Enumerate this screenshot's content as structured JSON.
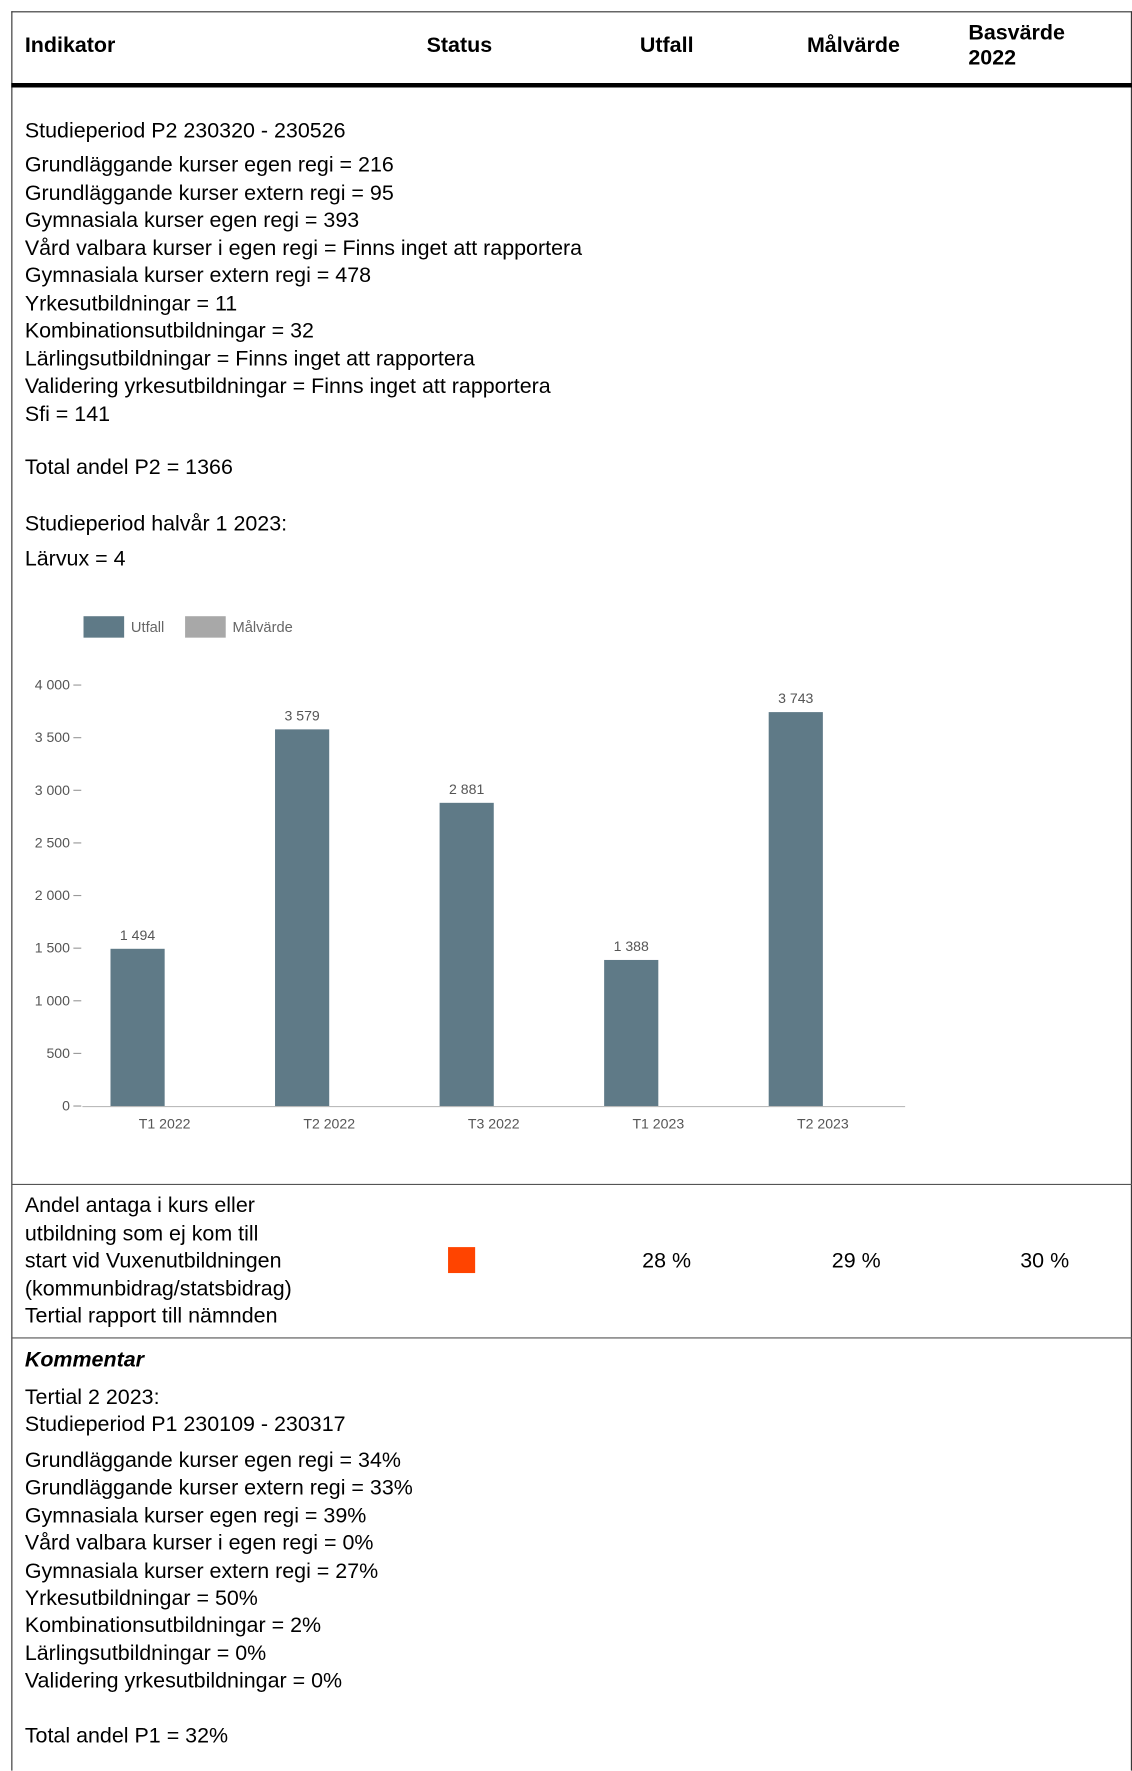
{
  "header": {
    "columns": [
      "Indikator",
      "Status",
      "Utfall",
      "Målvärde",
      "Basvärde 2022"
    ]
  },
  "section1": {
    "lines": [
      "Studieperiod P2 230320 - 230526",
      "Grundläggande kurser egen regi = 216",
      "Grundläggande kurser extern regi = 95",
      "Gymnasiala kurser egen regi = 393",
      "Vård valbara kurser i egen regi = Finns inget att rapportera",
      "Gymnasiala kurser extern regi = 478",
      "Yrkesutbildningar = 11",
      "Kombinationsutbildningar = 32",
      "Lärlingsutbildningar = Finns inget att rapportera",
      "Validering yrkesutbildningar = Finns inget att rapportera",
      "Sfi = 141",
      "Total andel P2 = 1366",
      "Studieperiod halvår 1 2023:",
      "Lärvux = 4"
    ]
  },
  "chart_data": {
    "type": "bar",
    "categories": [
      "T1 2022",
      "T2 2022",
      "T3 2022",
      "T1 2023",
      "T2 2023"
    ],
    "series": [
      {
        "name": "Utfall",
        "color": "#5f7a87",
        "values": [
          1494,
          3579,
          2881,
          1388,
          3743
        ],
        "value_labels": [
          "1 494",
          "3 579",
          "2 881",
          "1 388",
          "3 743"
        ]
      },
      {
        "name": "Målvärde",
        "color": "#a8a8a8",
        "values": [
          null,
          null,
          null,
          null,
          null
        ]
      }
    ],
    "ylim": [
      0,
      4000
    ],
    "yticks": [
      0,
      500,
      {
        "value": 1000,
        "label": "1 000"
      },
      {
        "value": 1500,
        "label": "1 500"
      },
      {
        "value": 2000,
        "label": "2 000"
      },
      {
        "value": 2500,
        "label": "2 500"
      },
      {
        "value": 3000,
        "label": "3 000"
      },
      {
        "value": 3500,
        "label": "3 500"
      },
      {
        "value": 4000,
        "label": "4 000"
      }
    ],
    "grid": false,
    "legend": "top-left"
  },
  "row2": {
    "indicator": [
      "Andel antaga i kurs eller",
      "utbildning som ej kom till",
      "start vid Vuxenutbildningen",
      "(kommunbidrag/statsbidrag)",
      "Tertial rapport till nämnden"
    ],
    "status_color": "#ff4400",
    "utfall": "28 %",
    "malvarde": "29 %",
    "basvarde": "30 %"
  },
  "comment": {
    "title": "Kommentar",
    "lines": [
      "Tertial 2 2023:",
      "Studieperiod P1 230109 - 230317",
      "Grundläggande kurser egen regi = 34%",
      "Grundläggande kurser extern regi = 33%",
      "Gymnasiala kurser egen regi = 39%",
      "Vård valbara kurser i egen regi = 0%",
      "Gymnasiala kurser extern regi = 27%",
      "Yrkesutbildningar = 50%",
      "Kombinationsutbildningar = 2%",
      "Lärlingsutbildningar = 0%",
      "Validering yrkesutbildningar = 0%",
      "Total andel P1 = 32%"
    ]
  }
}
